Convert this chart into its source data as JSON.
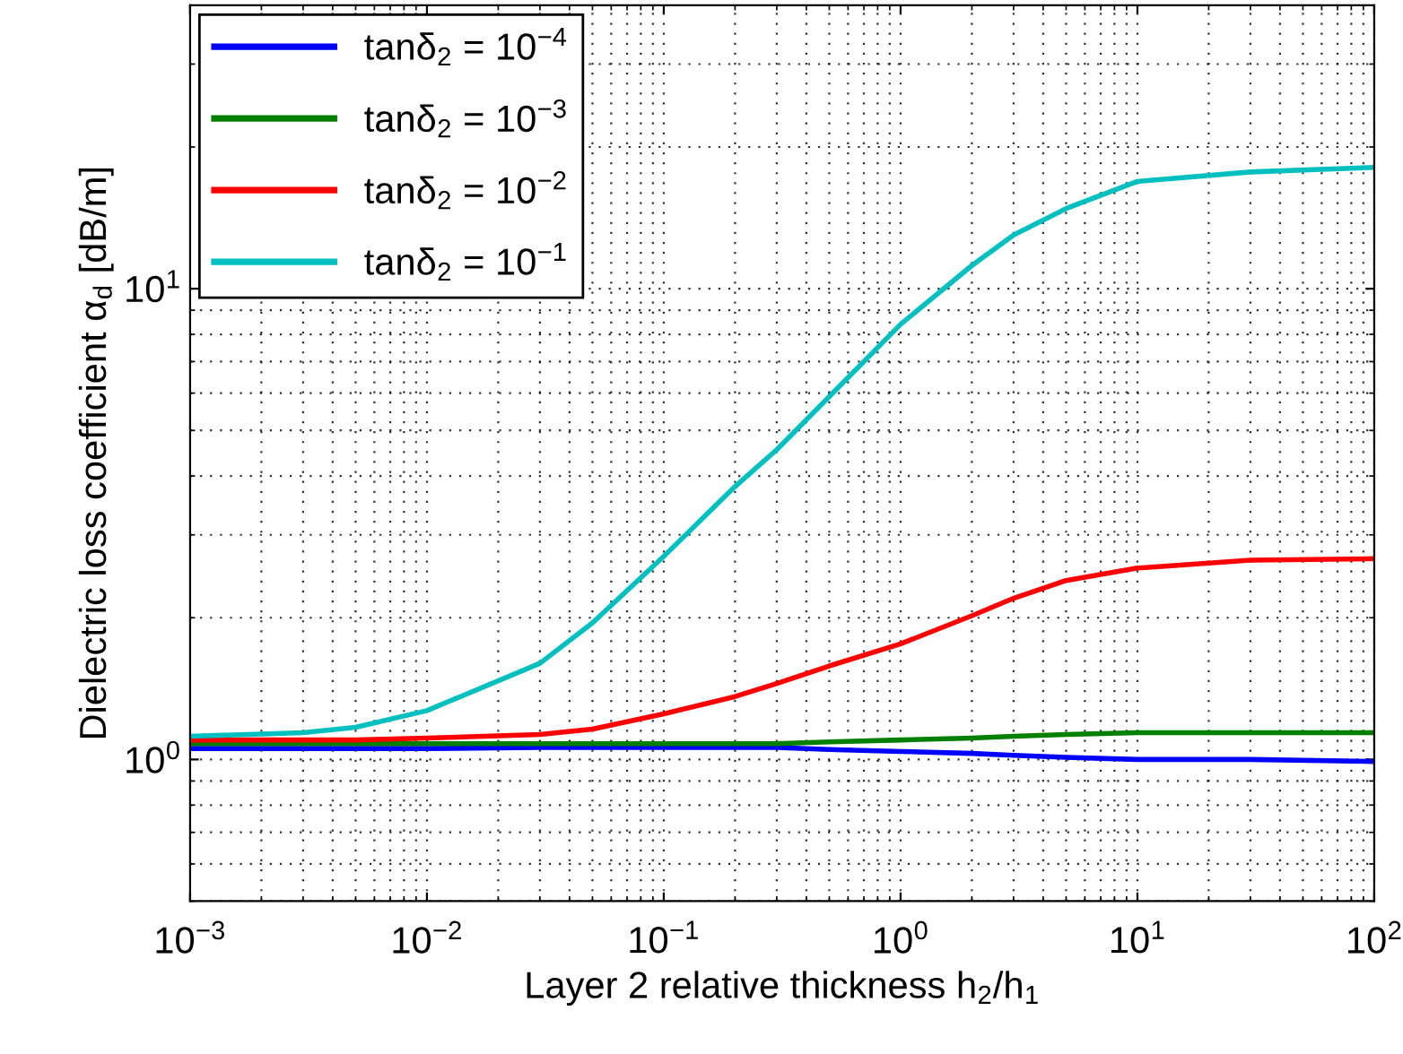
{
  "chart_data": {
    "type": "line",
    "xlabel": "Layer 2 relative thickness h$_{2}$/h$_{1}$",
    "ylabel": "Dielectric loss coefficient α$_{d}$ [dB/m]",
    "x": [
      0.001,
      0.003,
      0.005,
      0.01,
      0.03,
      0.05,
      0.1,
      0.2,
      0.3,
      0.5,
      1,
      2,
      3,
      5,
      10,
      30,
      100
    ],
    "series": [
      {
        "name": "tanδ$_{2}$ = 10$^{−4}$",
        "color": "#0000ff",
        "values": [
          1.055,
          1.055,
          1.055,
          1.055,
          1.06,
          1.06,
          1.06,
          1.06,
          1.06,
          1.05,
          1.04,
          1.03,
          1.02,
          1.01,
          1.0,
          1.0,
          0.99
        ]
      },
      {
        "name": "tanδ$_{2}$ = 10$^{−3}$",
        "color": "#007f00",
        "values": [
          1.08,
          1.08,
          1.08,
          1.08,
          1.08,
          1.08,
          1.08,
          1.08,
          1.08,
          1.09,
          1.1,
          1.11,
          1.12,
          1.13,
          1.14,
          1.14,
          1.14
        ]
      },
      {
        "name": "tanδ$_{2}$ = 10$^{−2}$",
        "color": "#ff0000",
        "values": [
          1.1,
          1.1,
          1.1,
          1.11,
          1.13,
          1.16,
          1.25,
          1.36,
          1.45,
          1.58,
          1.76,
          2.02,
          2.2,
          2.4,
          2.55,
          2.65,
          2.67
        ]
      },
      {
        "name": "tanδ$_{2}$ = 10$^{−1}$",
        "color": "#00bfbf",
        "values": [
          1.12,
          1.14,
          1.17,
          1.27,
          1.6,
          1.95,
          2.7,
          3.8,
          4.55,
          5.9,
          8.4,
          11.2,
          13.0,
          14.8,
          16.9,
          17.7,
          18.1
        ]
      }
    ],
    "log": "xy",
    "xlim": [
      0.001,
      100
    ],
    "xticks": [
      {
        "value": 0.001,
        "label": "10$^{−3}$"
      },
      {
        "value": 0.01,
        "label": "10$^{−2}$"
      },
      {
        "value": 0.1,
        "label": "10$^{−1}$"
      },
      {
        "value": 1,
        "label": "10$^{0}$"
      },
      {
        "value": 10,
        "label": "10$^{1}$"
      },
      {
        "value": 100,
        "label": "10$^{2}$"
      }
    ],
    "ylim": [
      0.5,
      40
    ],
    "yticks": [
      {
        "value": 1,
        "label": "10$^{0}$"
      },
      {
        "value": 10,
        "label": "10$^{1}$"
      }
    ],
    "grid": true,
    "legend": "top left",
    "marker": "none",
    "line_style": "solid"
  }
}
